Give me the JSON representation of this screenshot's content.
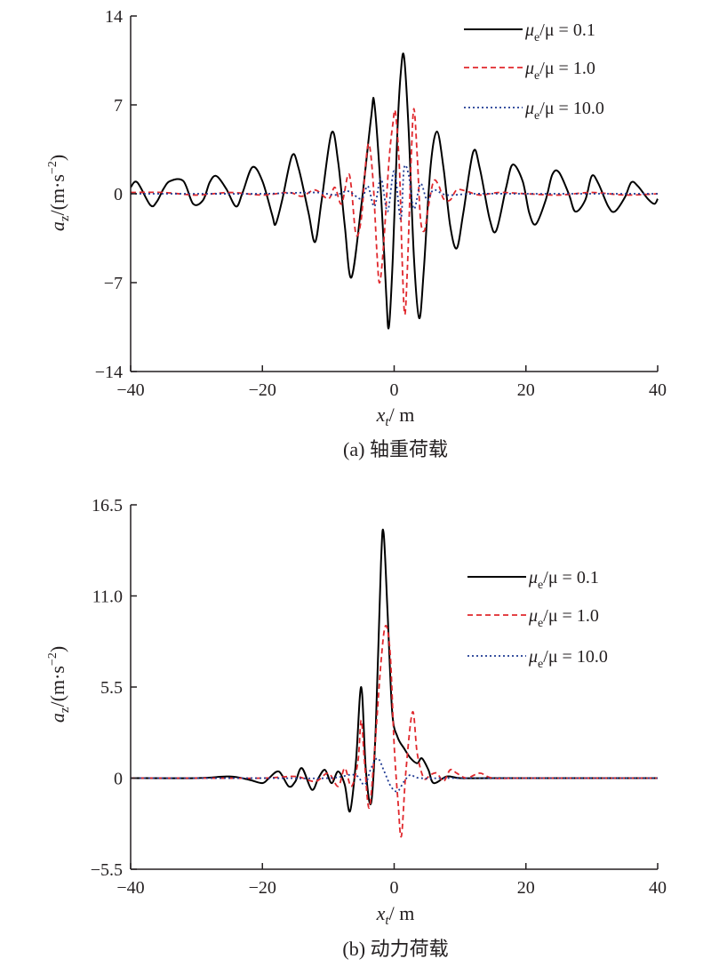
{
  "legend": {
    "entries": [
      {
        "mu_sym": "μ",
        "sub": "e",
        "rest": "/μ = 0.1"
      },
      {
        "mu_sym": "μ",
        "sub": "e",
        "rest": "/μ = 1.0"
      },
      {
        "mu_sym": "μ",
        "sub": "e",
        "rest": "/μ = 10.0"
      }
    ]
  },
  "labels": {
    "y_prefix": "a",
    "y_sub": "z",
    "y_unit_a": "/(m·s",
    "y_unit_exp": "−2",
    "y_unit_b": ")",
    "x_prefix": "x",
    "x_sub": "t",
    "x_unit": "/ m"
  },
  "chart_data": [
    {
      "type": "line",
      "caption": "(a) 轴重荷载",
      "xlim": [
        -40,
        40
      ],
      "ylim": [
        -14,
        14
      ],
      "x_ticks": [
        "−40",
        "−20",
        "0",
        "20",
        "40"
      ],
      "y_ticks": [
        "14",
        "7",
        "0",
        "−7",
        "−14"
      ],
      "legend_position": "top-right",
      "grid": false,
      "series": [
        {
          "name": "μe/μ = 0.1",
          "color": "#000000",
          "dash": "solid",
          "points": [
            [
              -40.0,
              0.5
            ],
            [
              -39.0,
              0.9
            ],
            [
              -37.0,
              -0.9
            ],
            [
              -36.0,
              -0.6
            ],
            [
              -35.0,
              0.4
            ],
            [
              -34.0,
              1.0
            ],
            [
              -32.0,
              1.0
            ],
            [
              -30.5,
              -0.8
            ],
            [
              -29.0,
              -0.5
            ],
            [
              -28.0,
              0.9
            ],
            [
              -27.0,
              1.4
            ],
            [
              -25.5,
              0.4
            ],
            [
              -24.0,
              -1.0
            ],
            [
              -23.0,
              0.1
            ],
            [
              -21.5,
              2.1
            ],
            [
              -20.0,
              1.0
            ],
            [
              -18.5,
              -1.7
            ],
            [
              -18.0,
              -2.4
            ],
            [
              -17.0,
              -0.5
            ],
            [
              -15.5,
              3.0
            ],
            [
              -14.5,
              2.0
            ],
            [
              -13.0,
              -1.5
            ],
            [
              -12.0,
              -3.8
            ],
            [
              -11.0,
              -0.5
            ],
            [
              -9.5,
              4.8
            ],
            [
              -8.5,
              2.5
            ],
            [
              -7.5,
              -2.5
            ],
            [
              -6.5,
              -6.6
            ],
            [
              -5.0,
              -1.0
            ],
            [
              -3.5,
              6.0
            ],
            [
              -3.0,
              7.1
            ],
            [
              -2.0,
              0.0
            ],
            [
              -1.2,
              -8.0
            ],
            [
              -0.8,
              -10.5
            ],
            [
              -0.2,
              -5.0
            ],
            [
              0.5,
              5.0
            ],
            [
              1.0,
              9.5
            ],
            [
              1.5,
              10.8
            ],
            [
              2.2,
              5.0
            ],
            [
              3.0,
              -5.0
            ],
            [
              3.8,
              -9.8
            ],
            [
              4.5,
              -6.0
            ],
            [
              5.5,
              2.0
            ],
            [
              6.5,
              4.9
            ],
            [
              7.5,
              2.0
            ],
            [
              8.5,
              -2.5
            ],
            [
              9.5,
              -4.3
            ],
            [
              10.5,
              -1.5
            ],
            [
              12.0,
              3.3
            ],
            [
              13.0,
              2.0
            ],
            [
              14.5,
              -2.0
            ],
            [
              15.5,
              -2.9
            ],
            [
              17.0,
              0.5
            ],
            [
              18.0,
              2.3
            ],
            [
              19.5,
              1.0
            ],
            [
              20.5,
              -1.5
            ],
            [
              21.5,
              -2.4
            ],
            [
              23.0,
              -0.5
            ],
            [
              24.0,
              1.5
            ],
            [
              25.0,
              1.7
            ],
            [
              26.5,
              0.0
            ],
            [
              27.5,
              -1.4
            ],
            [
              29.0,
              -0.5
            ],
            [
              30.0,
              1.4
            ],
            [
              31.0,
              0.8
            ],
            [
              32.5,
              -1.0
            ],
            [
              33.5,
              -1.4
            ],
            [
              35.0,
              -0.3
            ],
            [
              36.0,
              0.9
            ],
            [
              37.0,
              0.6
            ],
            [
              38.5,
              -0.4
            ],
            [
              39.5,
              -0.8
            ],
            [
              40.0,
              -0.4
            ]
          ]
        },
        {
          "name": "μe/μ = 1.0",
          "color": "#e0282d",
          "dash": "dashed",
          "points": [
            [
              -40.0,
              0.1
            ],
            [
              -35.0,
              0.1
            ],
            [
              -30.0,
              -0.1
            ],
            [
              -25.0,
              0.1
            ],
            [
              -20.0,
              -0.1
            ],
            [
              -16.0,
              0.1
            ],
            [
              -14.0,
              -0.2
            ],
            [
              -12.0,
              0.3
            ],
            [
              -10.0,
              -0.4
            ],
            [
              -9.0,
              0.5
            ],
            [
              -8.0,
              -0.8
            ],
            [
              -7.0,
              1.5
            ],
            [
              -6.5,
              0.5
            ],
            [
              -5.8,
              -3.2
            ],
            [
              -5.0,
              -2.0
            ],
            [
              -4.3,
              2.5
            ],
            [
              -3.8,
              3.9
            ],
            [
              -3.2,
              1.0
            ],
            [
              -2.6,
              -4.8
            ],
            [
              -2.2,
              -7.0
            ],
            [
              -1.6,
              -4.0
            ],
            [
              -0.8,
              2.5
            ],
            [
              -0.2,
              5.5
            ],
            [
              0.2,
              6.4
            ],
            [
              0.8,
              2.0
            ],
            [
              1.2,
              -5.0
            ],
            [
              1.6,
              -9.5
            ],
            [
              2.0,
              -6.0
            ],
            [
              2.6,
              3.0
            ],
            [
              3.0,
              6.7
            ],
            [
              3.5,
              3.0
            ],
            [
              4.0,
              -2.0
            ],
            [
              4.6,
              -2.9
            ],
            [
              5.2,
              -1.0
            ],
            [
              6.0,
              1.0
            ],
            [
              6.8,
              0.6
            ],
            [
              7.5,
              -0.4
            ],
            [
              8.5,
              -0.5
            ],
            [
              9.5,
              0.3
            ],
            [
              11.0,
              0.2
            ],
            [
              13.0,
              -0.1
            ],
            [
              16.0,
              0.1
            ],
            [
              20.0,
              0.0
            ],
            [
              25.0,
              -0.1
            ],
            [
              30.0,
              0.1
            ],
            [
              35.0,
              -0.1
            ],
            [
              40.0,
              0.0
            ]
          ]
        },
        {
          "name": "μe/μ = 10.0",
          "color": "#1f3a93",
          "dash": "dotted",
          "points": [
            [
              -40.0,
              0.0
            ],
            [
              -30.0,
              0.0
            ],
            [
              -20.0,
              0.0
            ],
            [
              -12.0,
              0.1
            ],
            [
              -9.0,
              -0.1
            ],
            [
              -7.0,
              0.2
            ],
            [
              -5.0,
              -0.4
            ],
            [
              -4.0,
              0.6
            ],
            [
              -3.0,
              -1.0
            ],
            [
              -2.0,
              1.2
            ],
            [
              -1.0,
              -1.4
            ],
            [
              0.0,
              1.8
            ],
            [
              1.0,
              -2.0
            ],
            [
              1.5,
              2.0
            ],
            [
              2.2,
              1.5
            ],
            [
              3.0,
              -1.2
            ],
            [
              4.0,
              0.8
            ],
            [
              5.0,
              -0.5
            ],
            [
              6.0,
              0.3
            ],
            [
              8.0,
              -0.1
            ],
            [
              12.0,
              0.0
            ],
            [
              20.0,
              0.0
            ],
            [
              40.0,
              0.0
            ]
          ]
        }
      ]
    },
    {
      "type": "line",
      "caption": "(b) 动力荷载",
      "xlim": [
        -40,
        40
      ],
      "ylim": [
        -5.5,
        16.5
      ],
      "x_ticks": [
        "−40",
        "−20",
        "0",
        "20",
        "40"
      ],
      "y_ticks": [
        "16.5",
        "11.0",
        "5.5",
        "0",
        "−5.5"
      ],
      "legend_position": "top-right",
      "grid": false,
      "series": [
        {
          "name": "μe/μ = 0.1",
          "color": "#000000",
          "dash": "solid",
          "points": [
            [
              -40.0,
              0.0
            ],
            [
              -30.0,
              0.0
            ],
            [
              -25.0,
              0.1
            ],
            [
              -22.0,
              -0.1
            ],
            [
              -20.0,
              -0.3
            ],
            [
              -19.0,
              0.0
            ],
            [
              -17.5,
              0.4
            ],
            [
              -16.0,
              -0.5
            ],
            [
              -15.0,
              -0.2
            ],
            [
              -14.0,
              0.6
            ],
            [
              -12.5,
              -0.7
            ],
            [
              -11.5,
              0.0
            ],
            [
              -10.5,
              0.5
            ],
            [
              -9.5,
              -0.3
            ],
            [
              -8.5,
              0.4
            ],
            [
              -7.5,
              -0.4
            ],
            [
              -6.7,
              -2.0
            ],
            [
              -5.8,
              1.0
            ],
            [
              -5.0,
              5.5
            ],
            [
              -4.3,
              0.5
            ],
            [
              -3.5,
              -1.5
            ],
            [
              -2.8,
              3.0
            ],
            [
              -2.0,
              13.0
            ],
            [
              -1.6,
              14.8
            ],
            [
              -1.0,
              10.0
            ],
            [
              -0.3,
              4.0
            ],
            [
              0.5,
              2.5
            ],
            [
              1.5,
              1.8
            ],
            [
              2.5,
              1.2
            ],
            [
              3.5,
              0.9
            ],
            [
              4.2,
              1.2
            ],
            [
              5.2,
              0.5
            ],
            [
              6.0,
              -0.3
            ],
            [
              8.0,
              0.1
            ],
            [
              10.0,
              0.0
            ],
            [
              15.0,
              0.0
            ],
            [
              40.0,
              0.0
            ]
          ]
        },
        {
          "name": "μe/μ = 1.0",
          "color": "#e0282d",
          "dash": "dashed",
          "points": [
            [
              -40.0,
              0.0
            ],
            [
              -30.0,
              0.0
            ],
            [
              -20.0,
              0.0
            ],
            [
              -15.0,
              0.1
            ],
            [
              -12.0,
              -0.2
            ],
            [
              -10.0,
              0.3
            ],
            [
              -8.5,
              -0.5
            ],
            [
              -7.5,
              0.6
            ],
            [
              -6.5,
              -0.5
            ],
            [
              -5.5,
              1.0
            ],
            [
              -5.0,
              3.5
            ],
            [
              -4.5,
              1.0
            ],
            [
              -3.8,
              -1.8
            ],
            [
              -3.0,
              1.5
            ],
            [
              -2.0,
              7.0
            ],
            [
              -1.3,
              9.2
            ],
            [
              -0.6,
              7.5
            ],
            [
              0.0,
              2.0
            ],
            [
              0.6,
              -1.5
            ],
            [
              1.1,
              -3.5
            ],
            [
              1.8,
              0.5
            ],
            [
              2.8,
              4.0
            ],
            [
              3.5,
              1.5
            ],
            [
              4.5,
              0.0
            ],
            [
              5.5,
              0.2
            ],
            [
              6.5,
              0.3
            ],
            [
              7.5,
              -0.2
            ],
            [
              8.5,
              0.5
            ],
            [
              9.5,
              0.3
            ],
            [
              11.0,
              0.0
            ],
            [
              13.0,
              0.3
            ],
            [
              15.0,
              0.0
            ],
            [
              20.0,
              0.0
            ],
            [
              40.0,
              0.0
            ]
          ]
        },
        {
          "name": "μe/μ = 10.0",
          "color": "#1f3a93",
          "dash": "dotted",
          "points": [
            [
              -40.0,
              0.0
            ],
            [
              -20.0,
              0.0
            ],
            [
              -10.0,
              0.0
            ],
            [
              -6.0,
              0.2
            ],
            [
              -4.5,
              -0.4
            ],
            [
              -3.5,
              0.6
            ],
            [
              -2.5,
              1.2
            ],
            [
              -1.5,
              0.4
            ],
            [
              -0.5,
              -0.5
            ],
            [
              0.5,
              -0.8
            ],
            [
              1.5,
              -0.2
            ],
            [
              2.5,
              0.2
            ],
            [
              4.0,
              0.0
            ],
            [
              10.0,
              0.0
            ],
            [
              40.0,
              0.0
            ]
          ]
        }
      ]
    }
  ]
}
